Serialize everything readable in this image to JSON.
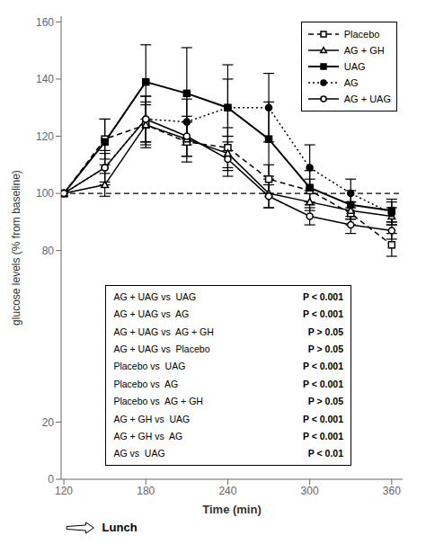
{
  "chart_data": {
    "type": "line",
    "x": [
      120,
      150,
      180,
      210,
      240,
      270,
      300,
      330,
      360
    ],
    "series": [
      {
        "name": "Placebo",
        "color": "black",
        "marker": "open_square",
        "line_style": "dashed",
        "values": [
          100,
          119,
          124,
          118,
          116,
          105,
          101,
          93,
          82
        ],
        "errors": [
          0,
          7,
          8,
          7,
          7,
          5,
          4,
          4,
          4
        ]
      },
      {
        "name": "AG + GH",
        "color": "black",
        "marker": "open_triangle",
        "line_style": "solid",
        "values": [
          100,
          103,
          124,
          119,
          114,
          100,
          97,
          94,
          92
        ],
        "errors": [
          0,
          4,
          7,
          6,
          6,
          5,
          3,
          3,
          3
        ]
      },
      {
        "name": "UAG",
        "color": "black",
        "marker": "filled_square",
        "line_style": "solid",
        "values": [
          100,
          118,
          139,
          135,
          130,
          119,
          102,
          96,
          94
        ],
        "errors": [
          0,
          8,
          13,
          16,
          15,
          13,
          6,
          5,
          4
        ]
      },
      {
        "name": "AG",
        "color": "black",
        "marker": "filled_circle",
        "line_style": "dotted",
        "values": [
          100,
          109,
          126,
          125,
          130,
          130,
          109,
          100,
          93
        ],
        "errors": [
          0,
          6,
          8,
          8,
          10,
          12,
          8,
          5,
          4
        ]
      },
      {
        "name": "AG + UAG",
        "color": "black",
        "marker": "open_circle",
        "line_style": "solid",
        "values": [
          100,
          109,
          126,
          120,
          112,
          99,
          92,
          89,
          87
        ],
        "errors": [
          0,
          5,
          8,
          7,
          6,
          4,
          3,
          3,
          3
        ]
      }
    ],
    "reference_line": {
      "y": 100,
      "line_style": "dashed",
      "color": "black"
    },
    "stats": [
      [
        "AG + UAG vs  UAG",
        "P < 0.001"
      ],
      [
        "AG + UAG vs  AG",
        "P < 0.001"
      ],
      [
        "AG + UAG vs  AG + GH",
        "P > 0.05"
      ],
      [
        "AG + UAG vs  Placebo",
        "P > 0.05"
      ],
      [
        "Placebo vs  UAG",
        "P < 0.001"
      ],
      [
        "Placebo vs  AG",
        "P < 0.001"
      ],
      [
        "Placebo vs  AG + GH",
        "P > 0.05"
      ],
      [
        "AG + GH vs  UAG",
        "P < 0.001"
      ],
      [
        "AG + GH vs  AG",
        "P < 0.001"
      ],
      [
        "AG vs  UAG",
        "P < 0.01"
      ]
    ],
    "annotations": [
      {
        "text": "Lunch",
        "x": 148,
        "arrow_x": [
          122,
          142
        ]
      }
    ],
    "xlabel": "Time (min)",
    "ylabel": "glucose levels (% from baseline)",
    "xlim": [
      118,
      368
    ],
    "ylim": [
      0,
      162
    ],
    "xticks": [
      120,
      180,
      240,
      300,
      360
    ],
    "yticks": [
      0,
      20,
      80,
      100,
      120,
      140,
      160
    ],
    "grid": false,
    "legend": "upper right"
  }
}
